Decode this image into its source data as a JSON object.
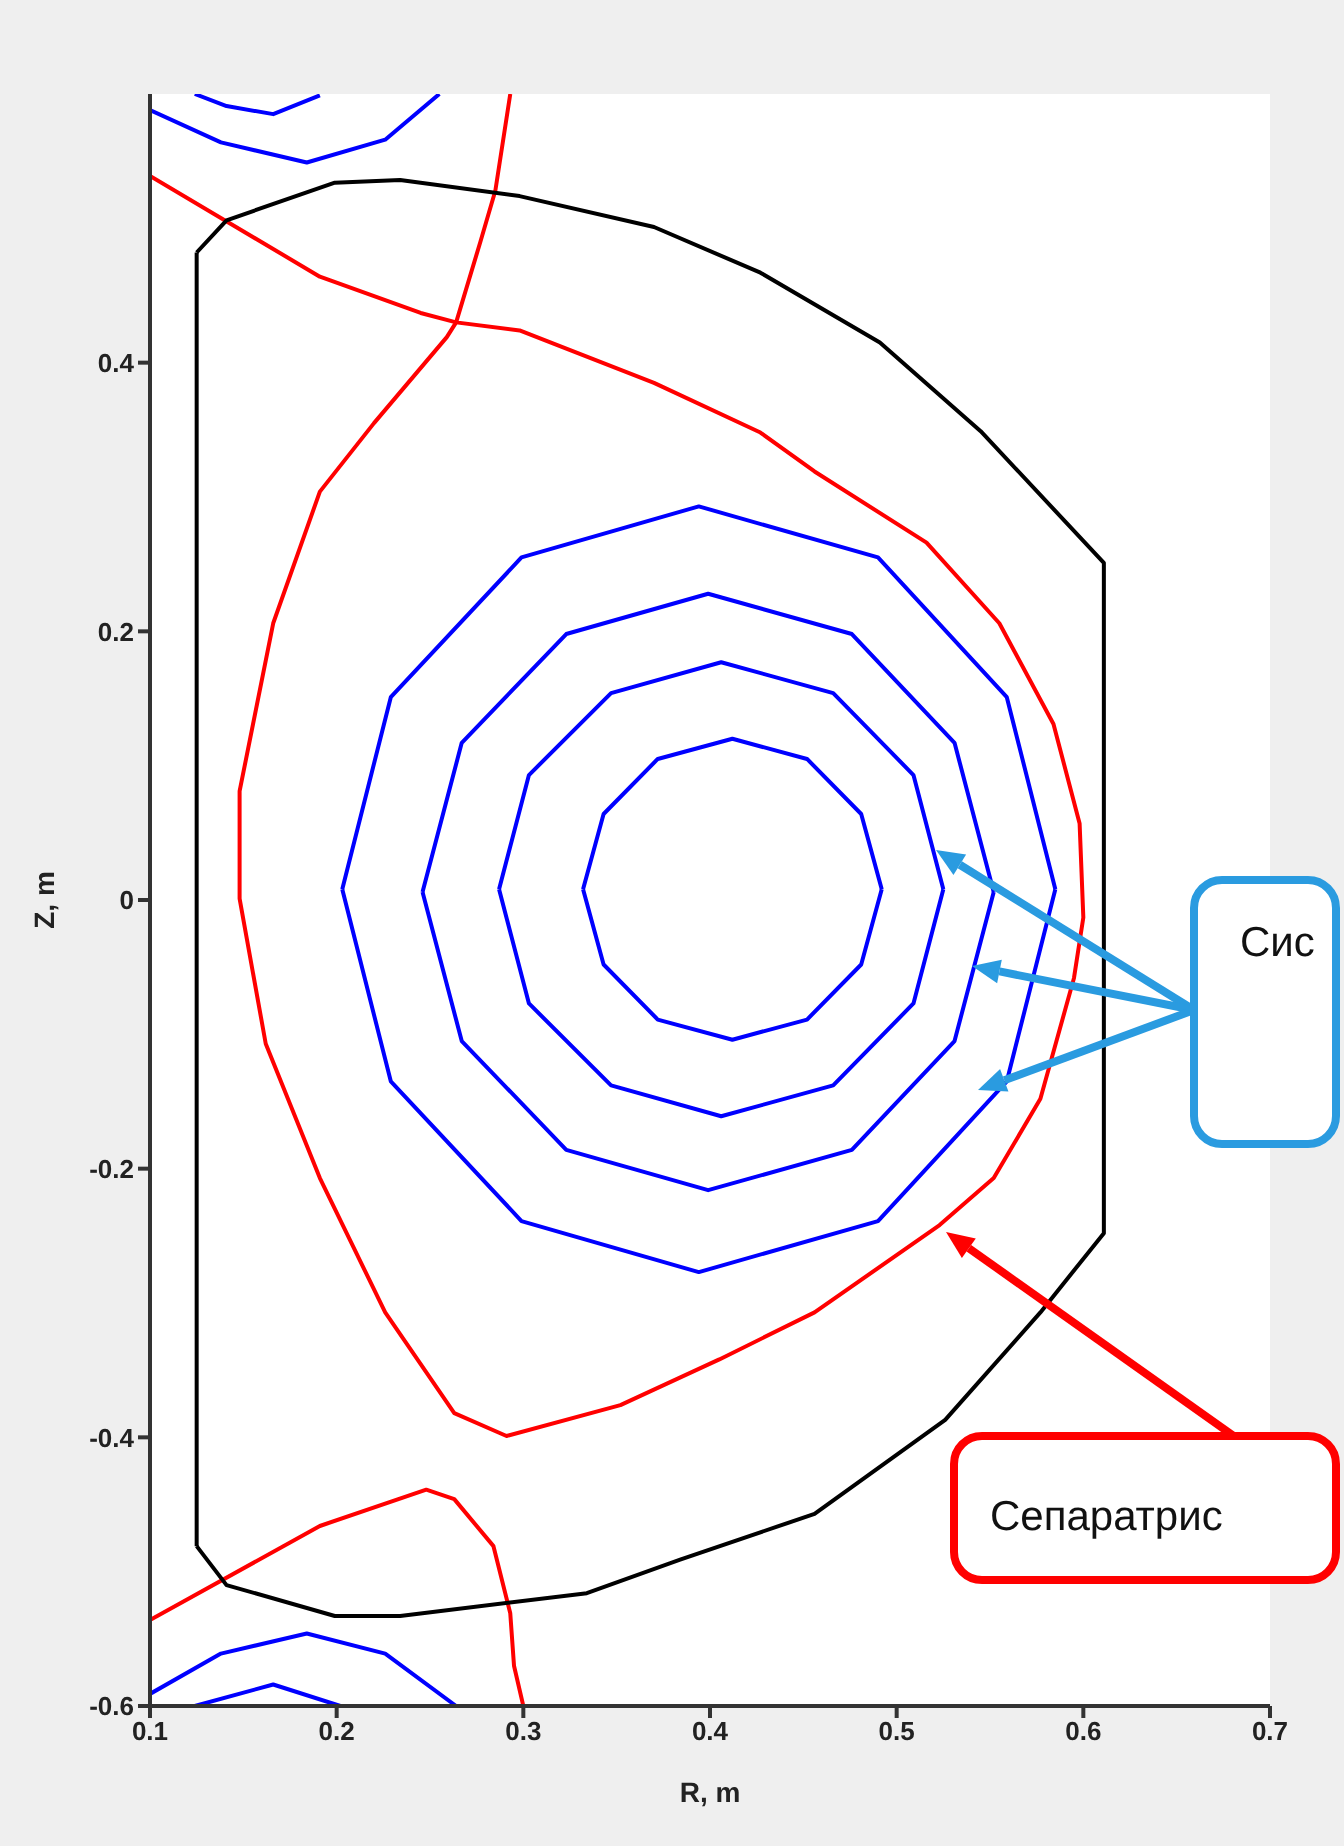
{
  "chart_data": {
    "type": "line",
    "xlabel": "R, m",
    "ylabel": "Z, m",
    "xlim": [
      0.1,
      0.7
    ],
    "ylim": [
      -0.6,
      0.6
    ],
    "xticks": [
      0.1,
      0.2,
      0.3,
      0.4,
      0.5,
      0.6,
      0.7
    ],
    "yticks": [
      -0.6,
      -0.4,
      -0.2,
      0,
      0.2,
      0.4
    ],
    "series": [
      {
        "color": "#0000ff",
        "x": [
          0.332,
          0.343,
          0.372,
          0.412,
          0.452,
          0.481,
          0.492
        ],
        "values": [
          0.008,
          0.064,
          0.105,
          0.12,
          0.105,
          0.064,
          0.008
        ]
      },
      {
        "color": "#0000ff",
        "x": [
          0.332,
          0.343,
          0.372,
          0.412,
          0.452,
          0.481,
          0.492
        ],
        "values": [
          0.008,
          -0.048,
          -0.089,
          -0.104,
          -0.089,
          -0.048,
          0.008
        ]
      },
      {
        "color": "#0000ff",
        "x": [
          0.287,
          0.303,
          0.347,
          0.406,
          0.466,
          0.509,
          0.525
        ],
        "values": [
          0.008,
          0.093,
          0.154,
          0.177,
          0.154,
          0.093,
          0.008
        ]
      },
      {
        "color": "#0000ff",
        "x": [
          0.287,
          0.303,
          0.347,
          0.406,
          0.466,
          0.509,
          0.525
        ],
        "values": [
          0.008,
          -0.077,
          -0.138,
          -0.161,
          -0.138,
          -0.077,
          0.008
        ]
      },
      {
        "color": "#0000ff",
        "x": [
          0.246,
          0.267,
          0.323,
          0.399,
          0.476,
          0.531,
          0.552
        ],
        "values": [
          0.006,
          0.117,
          0.198,
          0.228,
          0.198,
          0.117,
          0.006
        ]
      },
      {
        "color": "#0000ff",
        "x": [
          0.246,
          0.267,
          0.323,
          0.399,
          0.476,
          0.531,
          0.552
        ],
        "values": [
          0.006,
          -0.105,
          -0.186,
          -0.216,
          -0.186,
          -0.105,
          0.006
        ]
      },
      {
        "color": "#0000ff",
        "x": [
          0.203,
          0.229,
          0.299,
          0.394,
          0.49,
          0.559,
          0.585
        ],
        "values": [
          0.008,
          0.151,
          0.255,
          0.293,
          0.255,
          0.151,
          0.008
        ]
      },
      {
        "color": "#0000ff",
        "x": [
          0.203,
          0.229,
          0.299,
          0.394,
          0.49,
          0.559,
          0.585
        ],
        "values": [
          0.008,
          -0.135,
          -0.239,
          -0.277,
          -0.239,
          -0.135,
          0.008
        ]
      },
      {
        "color": "#0000ff",
        "x": [
          0.1,
          0.138,
          0.184,
          0.226,
          0.255
        ],
        "values": [
          0.588,
          0.564,
          0.549,
          0.566,
          0.6
        ]
      },
      {
        "color": "#0000ff",
        "x": [
          0.124,
          0.141,
          0.166,
          0.191
        ],
        "values": [
          0.6,
          0.591,
          0.585,
          0.599
        ]
      },
      {
        "color": "#0000ff",
        "x": [
          0.1,
          0.138,
          0.184,
          0.226,
          0.264
        ],
        "values": [
          -0.591,
          -0.561,
          -0.546,
          -0.561,
          -0.6
        ]
      },
      {
        "color": "#0000ff",
        "x": [
          0.124,
          0.166,
          0.202
        ],
        "values": [
          -0.6,
          -0.584,
          -0.6
        ]
      },
      {
        "color": "#ff0000",
        "x": [
          0.1,
          0.191,
          0.245,
          0.264,
          0.298,
          0.37,
          0.427,
          0.456,
          0.516,
          0.555,
          0.584,
          0.598,
          0.6,
          0.595,
          0.577,
          0.552,
          0.523,
          0.456,
          0.405,
          0.352,
          0.291,
          0.263,
          0.226,
          0.191,
          0.162,
          0.148,
          0.148,
          0.166,
          0.191,
          0.22,
          0.259,
          0.264,
          0.277,
          0.285,
          0.293
        ],
        "values": [
          0.539,
          0.464,
          0.437,
          0.43,
          0.424,
          0.385,
          0.348,
          0.319,
          0.266,
          0.206,
          0.131,
          0.057,
          -0.013,
          -0.058,
          -0.148,
          -0.207,
          -0.242,
          -0.307,
          -0.342,
          -0.376,
          -0.399,
          -0.382,
          -0.307,
          -0.207,
          -0.107,
          0.001,
          0.081,
          0.206,
          0.304,
          0.355,
          0.419,
          0.43,
          0.49,
          0.528,
          0.6
        ]
      },
      {
        "color": "#ff0000",
        "x": [
          0.1,
          0.191,
          0.248,
          0.263,
          0.284,
          0.293,
          0.295,
          0.3
        ],
        "values": [
          -0.536,
          -0.466,
          -0.439,
          -0.446,
          -0.481,
          -0.531,
          -0.57,
          -0.6
        ]
      },
      {
        "color": "#000000",
        "x": [
          0.125,
          0.141,
          0.199,
          0.234,
          0.298,
          0.37,
          0.427,
          0.491,
          0.545,
          0.611,
          0.611,
          0.577,
          0.526,
          0.456,
          0.384,
          0.334,
          0.234,
          0.199,
          0.141,
          0.125
        ],
        "values": [
          0.482,
          0.506,
          0.534,
          0.536,
          0.524,
          0.501,
          0.467,
          0.415,
          0.349,
          0.251,
          -0.248,
          -0.307,
          -0.387,
          -0.457,
          -0.491,
          -0.516,
          -0.533,
          -0.533,
          -0.51,
          -0.481
        ]
      },
      {
        "color": "#000000",
        "x": [
          0.125,
          0.125
        ],
        "values": [
          -0.481,
          0.482
        ]
      }
    ],
    "annotations": [
      "Сис",
      "Сепаратрис"
    ]
  }
}
